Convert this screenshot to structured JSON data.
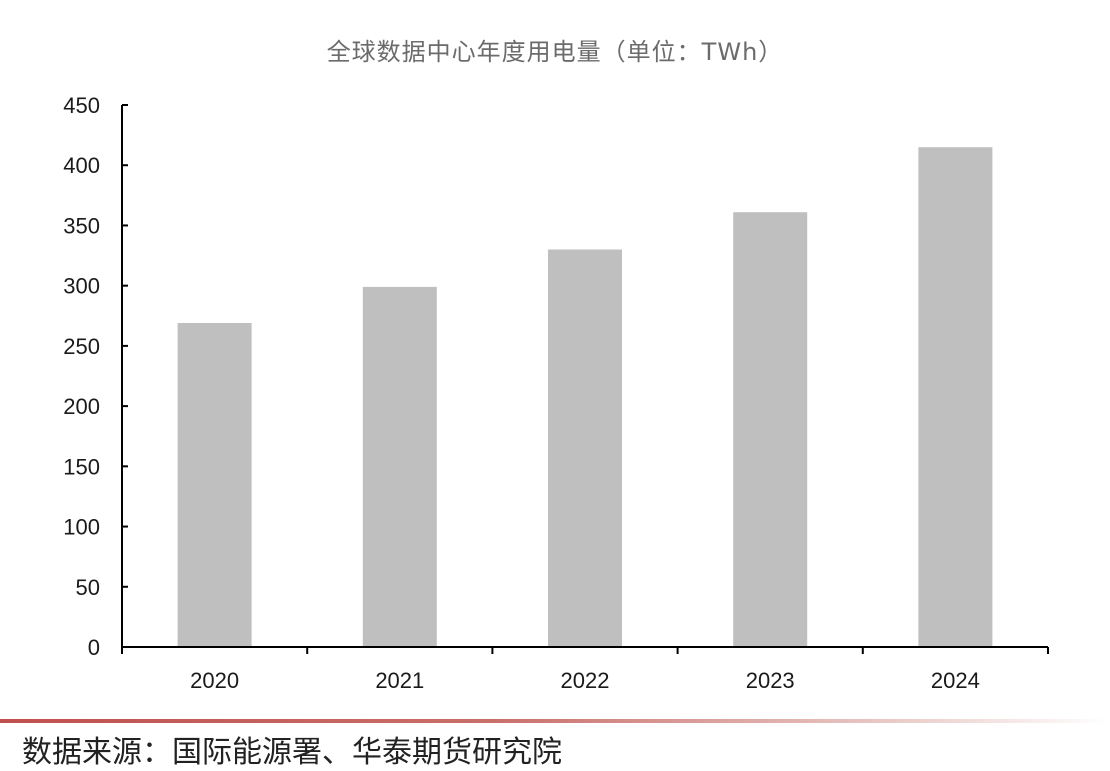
{
  "chart_data": {
    "type": "bar",
    "title": "全球数据中心年度用电量（单位：TWh）",
    "categories": [
      "2020",
      "2021",
      "2022",
      "2023",
      "2024"
    ],
    "values": [
      269,
      299,
      330,
      361,
      415
    ],
    "ylim": [
      0,
      450
    ],
    "yticks": [
      "0",
      "50",
      "100",
      "150",
      "200",
      "250",
      "300",
      "350",
      "400",
      "450"
    ],
    "grid": false,
    "legend": "none",
    "bar_color": "#bfbfbf",
    "axis_color": "#000000"
  },
  "source": "数据来源：国际能源署、华泰期货研究院"
}
